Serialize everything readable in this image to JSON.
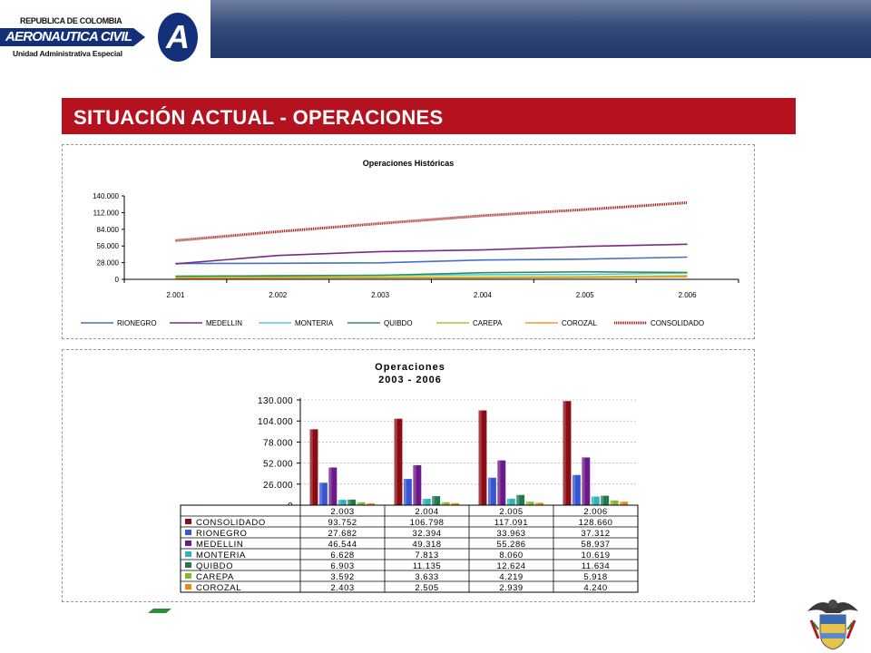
{
  "header": {
    "logo_top": "REPUBLICA DE COLOMBIA",
    "logo_main": "AERONAUTICA CIVIL",
    "logo_sub": "Unidad Administrativa Especial",
    "logo_letter": "A"
  },
  "title": "SITUACIÓN ACTUAL - OPERACIONES",
  "chart_data": [
    {
      "type": "line",
      "title": "Operaciones Históricas",
      "x": [
        "2.001",
        "2.002",
        "2.003",
        "2.004",
        "2.005",
        "2.006"
      ],
      "y_ticks": [
        "0",
        "28.000",
        "56.000",
        "84.000",
        "112.000",
        "140.000"
      ],
      "ylim": [
        0,
        140000
      ],
      "grid": false,
      "legend": "bottom",
      "series": [
        {
          "name": "RIONEGRO",
          "color": "#4472c4",
          "values": [
            26500,
            27000,
            27682,
            32394,
            33963,
            37312
          ]
        },
        {
          "name": "MEDELLIN",
          "color": "#7b2a84",
          "values": [
            26000,
            40000,
            46544,
            49318,
            55286,
            58937
          ]
        },
        {
          "name": "MONTERIA",
          "color": "#5bc8d8",
          "values": [
            5500,
            6000,
            6628,
            7813,
            8060,
            10619
          ]
        },
        {
          "name": "QUIBDO",
          "color": "#2f8f5a",
          "values": [
            5000,
            6000,
            6903,
            11135,
            12624,
            11634
          ]
        },
        {
          "name": "CAREPA",
          "color": "#9acd32",
          "values": [
            3000,
            3300,
            3592,
            3633,
            4219,
            5918
          ]
        },
        {
          "name": "COROZAL",
          "color": "#f39a2a",
          "values": [
            2000,
            2200,
            2403,
            2505,
            2939,
            4240
          ]
        },
        {
          "name": "CONSOLIDADO",
          "color": "#a52a2a",
          "values": [
            65000,
            80000,
            93752,
            106798,
            117091,
            128660
          ]
        }
      ]
    },
    {
      "type": "bar",
      "title": "Operaciones",
      "subtitle": "2003 - 2006",
      "categories": [
        "2.003",
        "2.004",
        "2.005",
        "2.006"
      ],
      "y_ticks": [
        "0",
        "26.000",
        "52.000",
        "78.000",
        "104.000",
        "130.000"
      ],
      "ylim": [
        0,
        130000
      ],
      "grid": true,
      "legend": "table-left",
      "series": [
        {
          "name": "CONSOLIDADO",
          "color": "#8b0d14",
          "values": [
            93752,
            106798,
            117091,
            128660
          ],
          "labels": [
            "93.752",
            "106.798",
            "117.091",
            "128.660"
          ]
        },
        {
          "name": "RIONEGRO",
          "color": "#3557d6",
          "values": [
            27682,
            32394,
            33963,
            37312
          ],
          "labels": [
            "27.682",
            "32.394",
            "33.963",
            "37.312"
          ]
        },
        {
          "name": "MEDELLIN",
          "color": "#6c1a8a",
          "values": [
            46544,
            49318,
            55286,
            58937
          ],
          "labels": [
            "46.544",
            "49.318",
            "55.286",
            "58.937"
          ]
        },
        {
          "name": "MONTERIA",
          "color": "#2fb3b8",
          "values": [
            6628,
            7813,
            8060,
            10619
          ],
          "labels": [
            "6.628",
            "7.813",
            "8.060",
            "10.619"
          ]
        },
        {
          "name": "QUIBDO",
          "color": "#1f7a52",
          "values": [
            6903,
            11135,
            12624,
            11634
          ],
          "labels": [
            "6.903",
            "11.135",
            "12.624",
            "11.634"
          ]
        },
        {
          "name": "CAREPA",
          "color": "#8ab82a",
          "values": [
            3592,
            3633,
            4219,
            5918
          ],
          "labels": [
            "3.592",
            "3.633",
            "4.219",
            "5.918"
          ]
        },
        {
          "name": "COROZAL",
          "color": "#e88a1a",
          "values": [
            2403,
            2505,
            2939,
            4240
          ],
          "labels": [
            "2.403",
            "2.505",
            "2.939",
            "4.240"
          ]
        }
      ]
    }
  ]
}
